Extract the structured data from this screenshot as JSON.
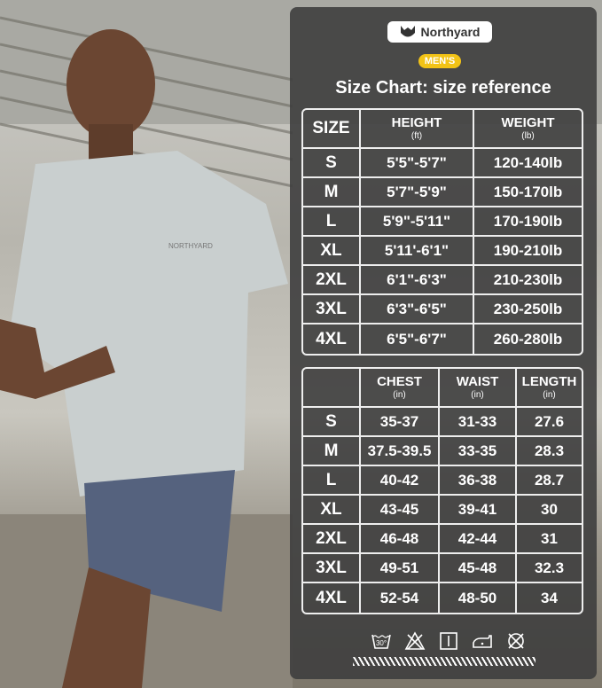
{
  "brand": "Northyard",
  "badge": "MEN'S",
  "title": "Size Chart: size reference",
  "table1": {
    "headers": [
      {
        "label": "SIZE",
        "unit": ""
      },
      {
        "label": "HEIGHT",
        "unit": "(ft)"
      },
      {
        "label": "WEIGHT",
        "unit": "(lb)"
      }
    ],
    "rows": [
      [
        "S",
        "5'5\"-5'7\"",
        "120-140lb"
      ],
      [
        "M",
        "5'7\"-5'9\"",
        "150-170lb"
      ],
      [
        "L",
        "5'9\"-5'11\"",
        "170-190lb"
      ],
      [
        "XL",
        "5'11'-6'1\"",
        "190-210lb"
      ],
      [
        "2XL",
        "6'1\"-6'3\"",
        "210-230lb"
      ],
      [
        "3XL",
        "6'3\"-6'5\"",
        "230-250lb"
      ],
      [
        "4XL",
        "6'5\"-6'7\"",
        "260-280lb"
      ]
    ]
  },
  "table2": {
    "headers": [
      {
        "label": "",
        "unit": ""
      },
      {
        "label": "CHEST",
        "unit": "(in)"
      },
      {
        "label": "WAIST",
        "unit": "(in)"
      },
      {
        "label": "LENGTH",
        "unit": "(in)"
      }
    ],
    "rows": [
      [
        "S",
        "35-37",
        "31-33",
        "27.6"
      ],
      [
        "M",
        "37.5-39.5",
        "33-35",
        "28.3"
      ],
      [
        "L",
        "40-42",
        "36-38",
        "28.7"
      ],
      [
        "XL",
        "43-45",
        "39-41",
        "30"
      ],
      [
        "2XL",
        "46-48",
        "42-44",
        "31"
      ],
      [
        "3XL",
        "49-51",
        "45-48",
        "32.3"
      ],
      [
        "4XL",
        "52-54",
        "48-50",
        "34"
      ]
    ]
  },
  "care": {
    "wash_temp": "30°",
    "icons": [
      "wash-30-icon",
      "no-bleach-icon",
      "dry-flat-icon",
      "iron-low-icon",
      "no-tumble-dry-icon"
    ]
  },
  "shirt_print": "NORTHYARD",
  "colors": {
    "panel": "#3e3e3e",
    "badge": "#f2c316",
    "shirt": "#c9cfcf",
    "shorts": "#55627e"
  }
}
